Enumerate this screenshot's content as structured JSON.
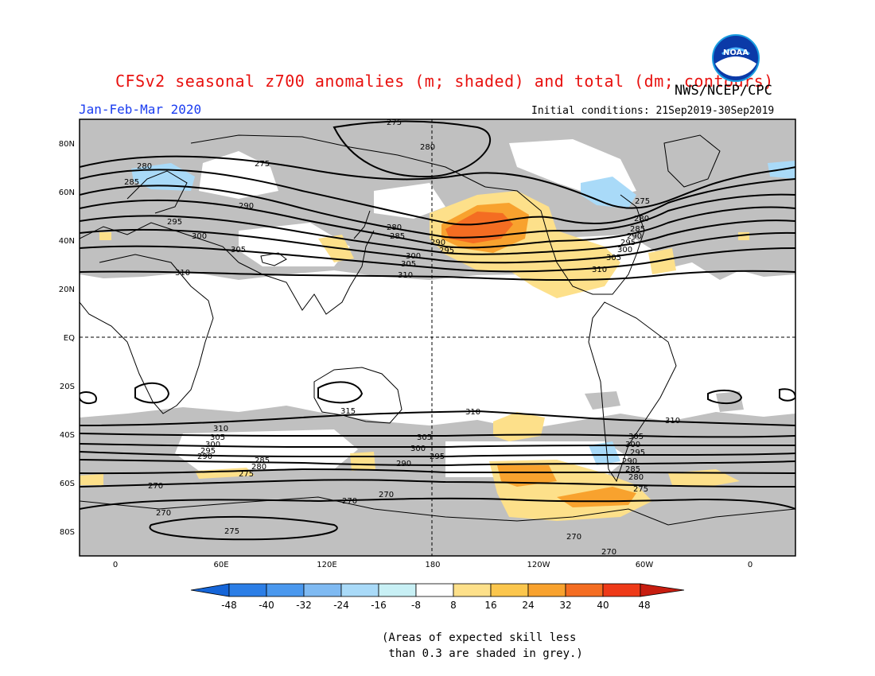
{
  "header": {
    "title": "CFSv2 seasonal z700 anomalies (m; shaded) and total (dm; contours)",
    "org": "NWS/NCEP/CPC",
    "period": "Jan-Feb-Mar 2020",
    "initial_conditions": "Initial conditions: 21Sep2019-30Sep2019",
    "logo_text": "NOAA"
  },
  "map": {
    "lat_labels": [
      "80N",
      "60N",
      "40N",
      "20N",
      "EQ",
      "20S",
      "40S",
      "60S",
      "80S"
    ],
    "lon_labels": [
      "0",
      "60E",
      "120E",
      "180",
      "120W",
      "60W",
      "0"
    ],
    "contour_labels": [
      "275",
      "280",
      "285",
      "290",
      "295",
      "300",
      "305",
      "310",
      "315",
      "270"
    ],
    "grey_meaning": "low skill"
  },
  "colorbar": {
    "ticks": [
      "-48",
      "-40",
      "-32",
      "-24",
      "-16",
      "-8",
      "8",
      "16",
      "24",
      "32",
      "40",
      "48"
    ],
    "colors": [
      "#1565d8",
      "#2c7ee6",
      "#4a98ee",
      "#7fbaf2",
      "#a9daf8",
      "#c8f0f5",
      "#ffffff",
      "#fde08a",
      "#fbc64d",
      "#f8a22e",
      "#f46d22",
      "#ee3a18",
      "#c71d10",
      "#9e140c"
    ]
  },
  "note": "(Areas of expected skill less\n than 0.3 are shaded in grey.)"
}
